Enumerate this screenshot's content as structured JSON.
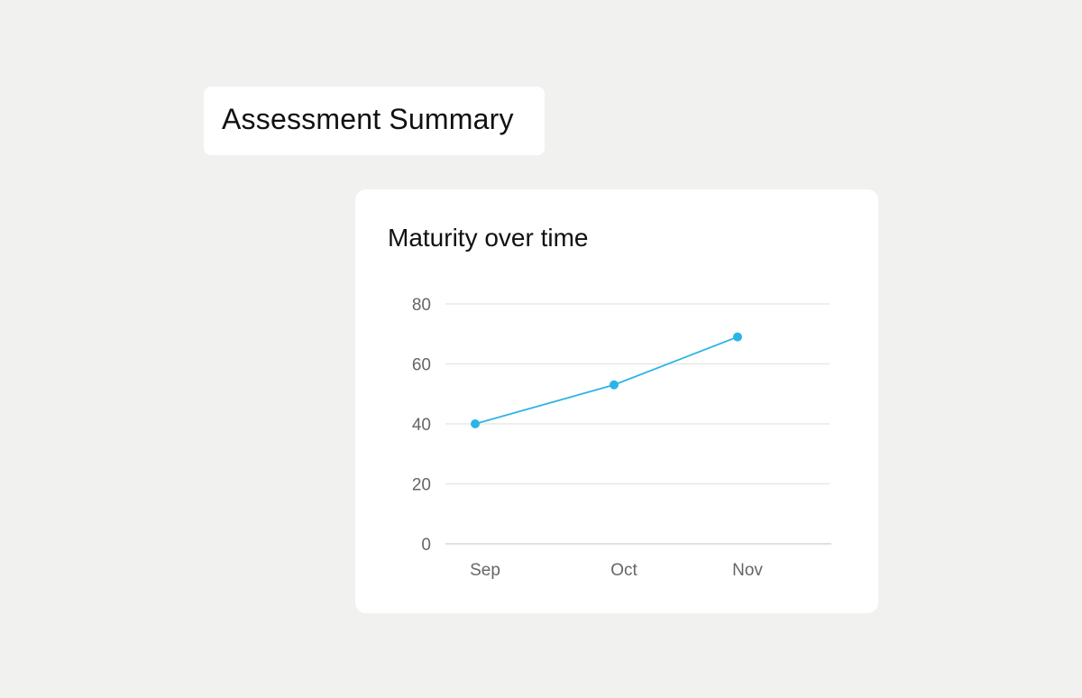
{
  "header": {
    "title": "Assessment Summary"
  },
  "chart_data": {
    "type": "line",
    "title": "Maturity over time",
    "xlabel": "",
    "ylabel": "",
    "categories": [
      "Sep",
      "Oct",
      "Nov"
    ],
    "series": [
      {
        "values": [
          40,
          53,
          69
        ],
        "color": "#2db4e6"
      }
    ],
    "ylim": [
      0,
      80
    ],
    "yticks": [
      0,
      20,
      40,
      60,
      80
    ],
    "grid": true,
    "legend": "none"
  }
}
